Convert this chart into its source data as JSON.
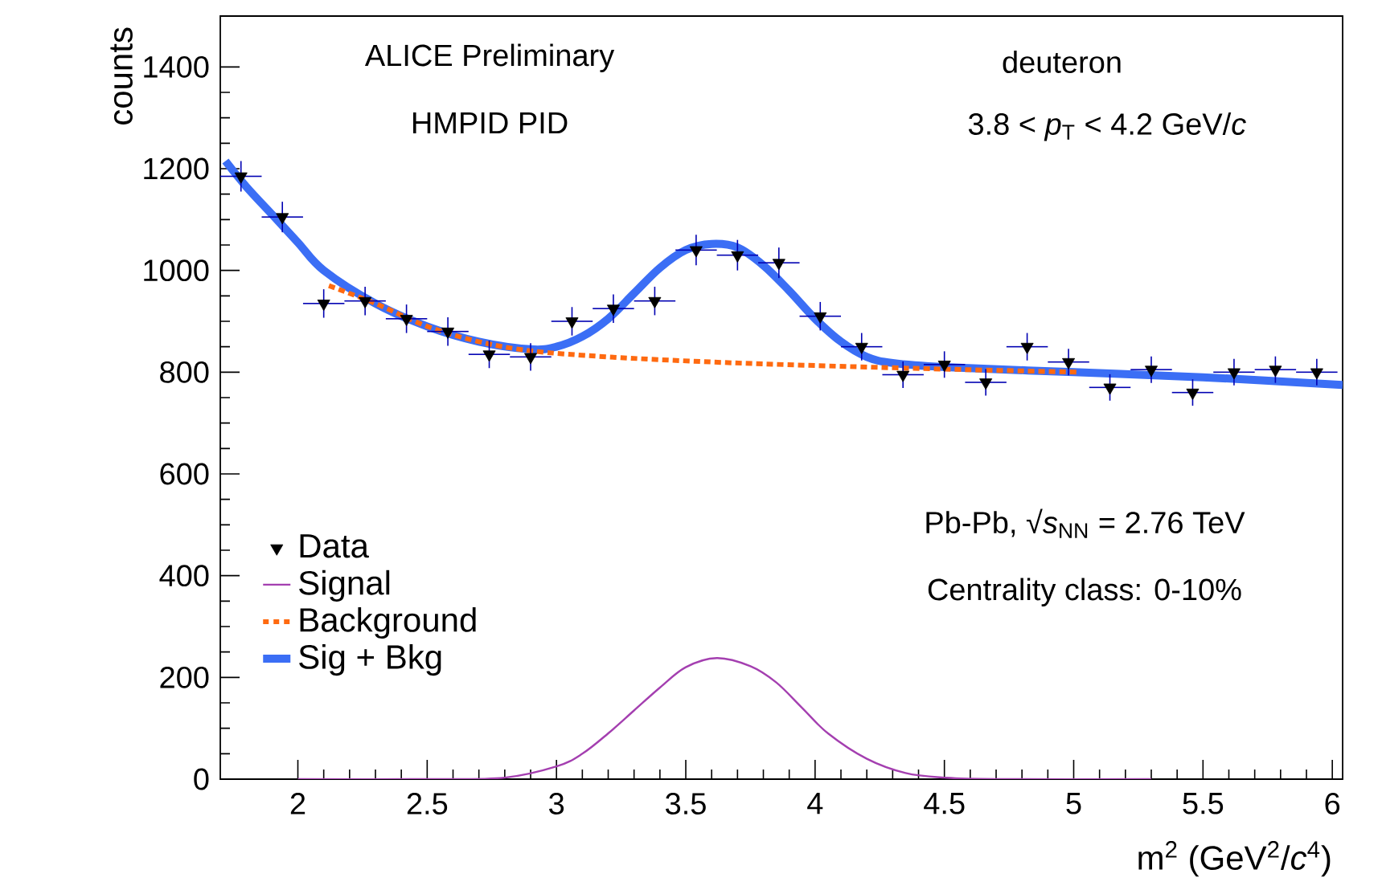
{
  "chart_data": {
    "type": "scatter",
    "annotations": [
      "ALICE Preliminary",
      "HMPID PID",
      "deuteron",
      "3.8 < *p*$_{T}$ < 4.2 GeV/*c*",
      "Pb-Pb, √*s*$_{NN}$ = 2.76 TeV",
      "Centrality class: 0-10%"
    ],
    "xlabel": "m$^{2}$ (GeV$^{2}$/*c*$^{4}$)",
    "ylabel": "counts",
    "xlim": [
      1.7,
      6.04
    ],
    "ylim": [
      0,
      1500
    ],
    "xticks": [
      2,
      2.5,
      3,
      3.5,
      4,
      4.5,
      5,
      5.5,
      6
    ],
    "yticks": [
      0,
      200,
      400,
      600,
      800,
      1000,
      1200,
      1400
    ],
    "legend": "bottom left",
    "series": [
      {
        "name": "Data",
        "marker": "triangle",
        "color": "#000000",
        "x": [
          1.78,
          1.94,
          2.1,
          2.26,
          2.42,
          2.58,
          2.74,
          2.9,
          3.06,
          3.22,
          3.38,
          3.54,
          3.7,
          3.86,
          4.02,
          4.18,
          4.34,
          4.5,
          4.66,
          4.82,
          4.98,
          5.14,
          5.3,
          5.46,
          5.62,
          5.78,
          5.94
        ],
        "values": [
          1185,
          1105,
          935,
          940,
          905,
          880,
          835,
          830,
          900,
          925,
          940,
          1040,
          1030,
          1015,
          910,
          850,
          795,
          815,
          780,
          850,
          820,
          770,
          805,
          760,
          800,
          805,
          800
        ],
        "errors": [
          30,
          30,
          28,
          28,
          28,
          28,
          27,
          27,
          28,
          28,
          28,
          30,
          30,
          30,
          28,
          27,
          26,
          26,
          26,
          27,
          26,
          26,
          26,
          26,
          26,
          26,
          26
        ],
        "xerrors": [
          0.08,
          0.08,
          0.08,
          0.08,
          0.08,
          0.08,
          0.08,
          0.08,
          0.08,
          0.08,
          0.08,
          0.08,
          0.08,
          0.08,
          0.08,
          0.08,
          0.08,
          0.08,
          0.08,
          0.08,
          0.08,
          0.08,
          0.08,
          0.08,
          0.08,
          0.08,
          0.08
        ]
      },
      {
        "name": "Signal",
        "type": "line",
        "line_style": "solid",
        "color": "#a43fb0",
        "x": [
          2.0,
          2.5,
          2.8,
          3.0,
          3.1,
          3.2,
          3.3,
          3.4,
          3.5,
          3.62,
          3.75,
          3.85,
          3.95,
          4.05,
          4.2,
          4.35,
          4.5,
          4.7,
          5.3
        ],
        "values": [
          0,
          0,
          3,
          25,
          50,
          90,
          135,
          180,
          220,
          238,
          222,
          190,
          140,
          90,
          40,
          12,
          3,
          0,
          0
        ]
      },
      {
        "name": "Background",
        "type": "line",
        "line_style": "dotted",
        "color": "#ff6a10",
        "x": [
          2.12,
          2.3,
          2.5,
          2.7,
          2.9,
          3.2,
          3.6,
          4.0,
          4.5,
          5.02
        ],
        "values": [
          970,
          935,
          890,
          860,
          842,
          830,
          820,
          813,
          806,
          800
        ]
      },
      {
        "name": "Sig + Bkg",
        "type": "line",
        "line_style": "solid",
        "color": "#3b6ef5",
        "x": [
          1.72,
          1.8,
          1.9,
          2.0,
          2.1,
          2.3,
          2.5,
          2.7,
          2.9,
          3.0,
          3.1,
          3.2,
          3.3,
          3.4,
          3.5,
          3.6,
          3.7,
          3.8,
          3.9,
          4.0,
          4.1,
          4.2,
          4.3,
          4.5,
          5.0,
          5.5,
          6.04
        ],
        "values": [
          1215,
          1165,
          1110,
          1055,
          1000,
          935,
          890,
          860,
          845,
          850,
          870,
          905,
          955,
          1005,
          1040,
          1052,
          1045,
          1010,
          960,
          905,
          860,
          830,
          818,
          810,
          800,
          790,
          775
        ]
      }
    ]
  }
}
